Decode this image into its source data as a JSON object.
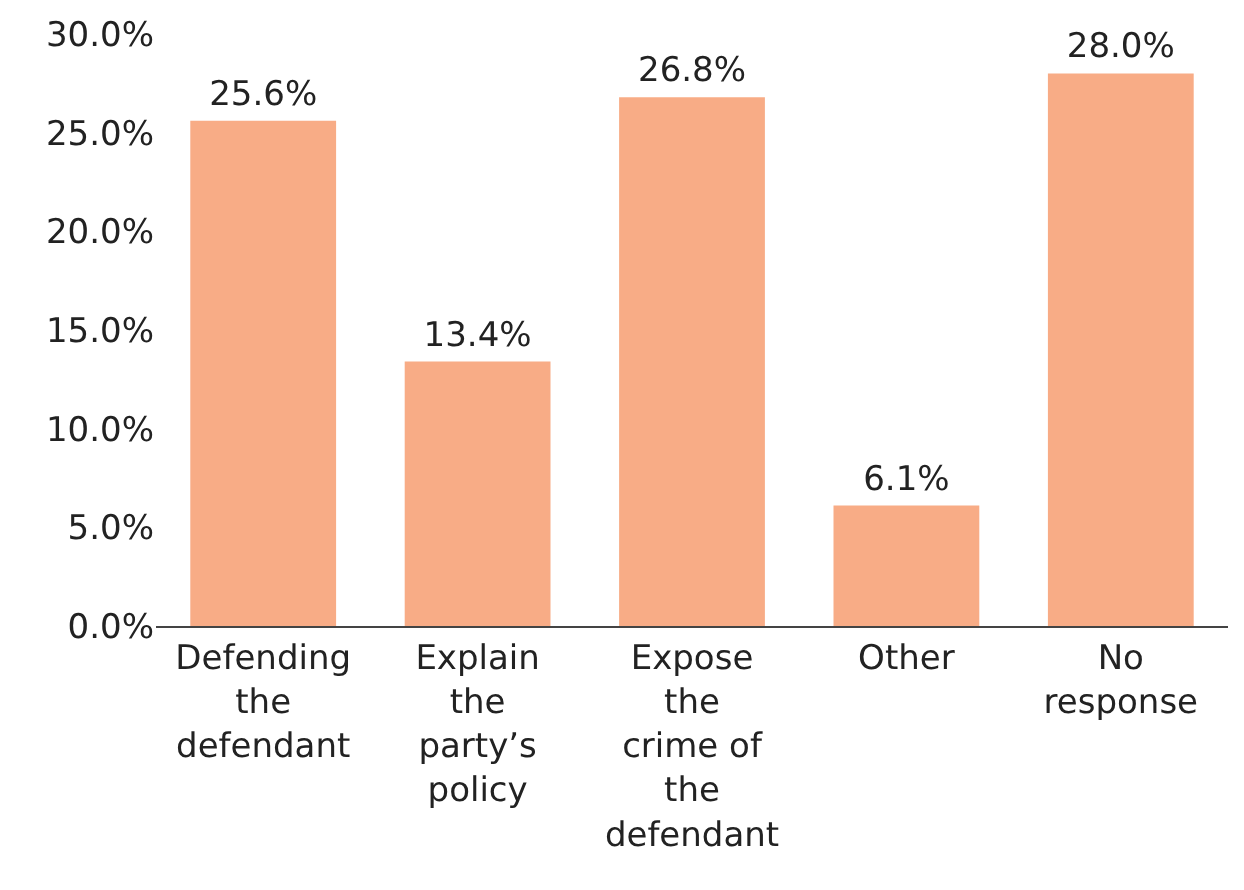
{
  "chart_data": {
    "type": "bar",
    "categories": [
      "Defending the defendant",
      "Explain the party’s policy",
      "Expose the crime of the defendant",
      "Other",
      "No response"
    ],
    "values": [
      25.6,
      13.4,
      26.8,
      6.1,
      28.0
    ],
    "value_labels": [
      "25.6%",
      "13.4%",
      "26.8%",
      "6.1%",
      "28.0%"
    ],
    "color": "#f8ac86",
    "ylim": [
      0,
      30
    ],
    "yticks": [
      {
        "value": 0,
        "label": "0.0%"
      },
      {
        "value": 5,
        "label": "5.0%"
      },
      {
        "value": 10,
        "label": "10.0%"
      },
      {
        "value": 15,
        "label": "15.0%"
      },
      {
        "value": 20,
        "label": "20.0%"
      },
      {
        "value": 25,
        "label": "25.0%"
      },
      {
        "value": 30,
        "label": "30.0%"
      }
    ],
    "grid": false,
    "legend": false
  }
}
